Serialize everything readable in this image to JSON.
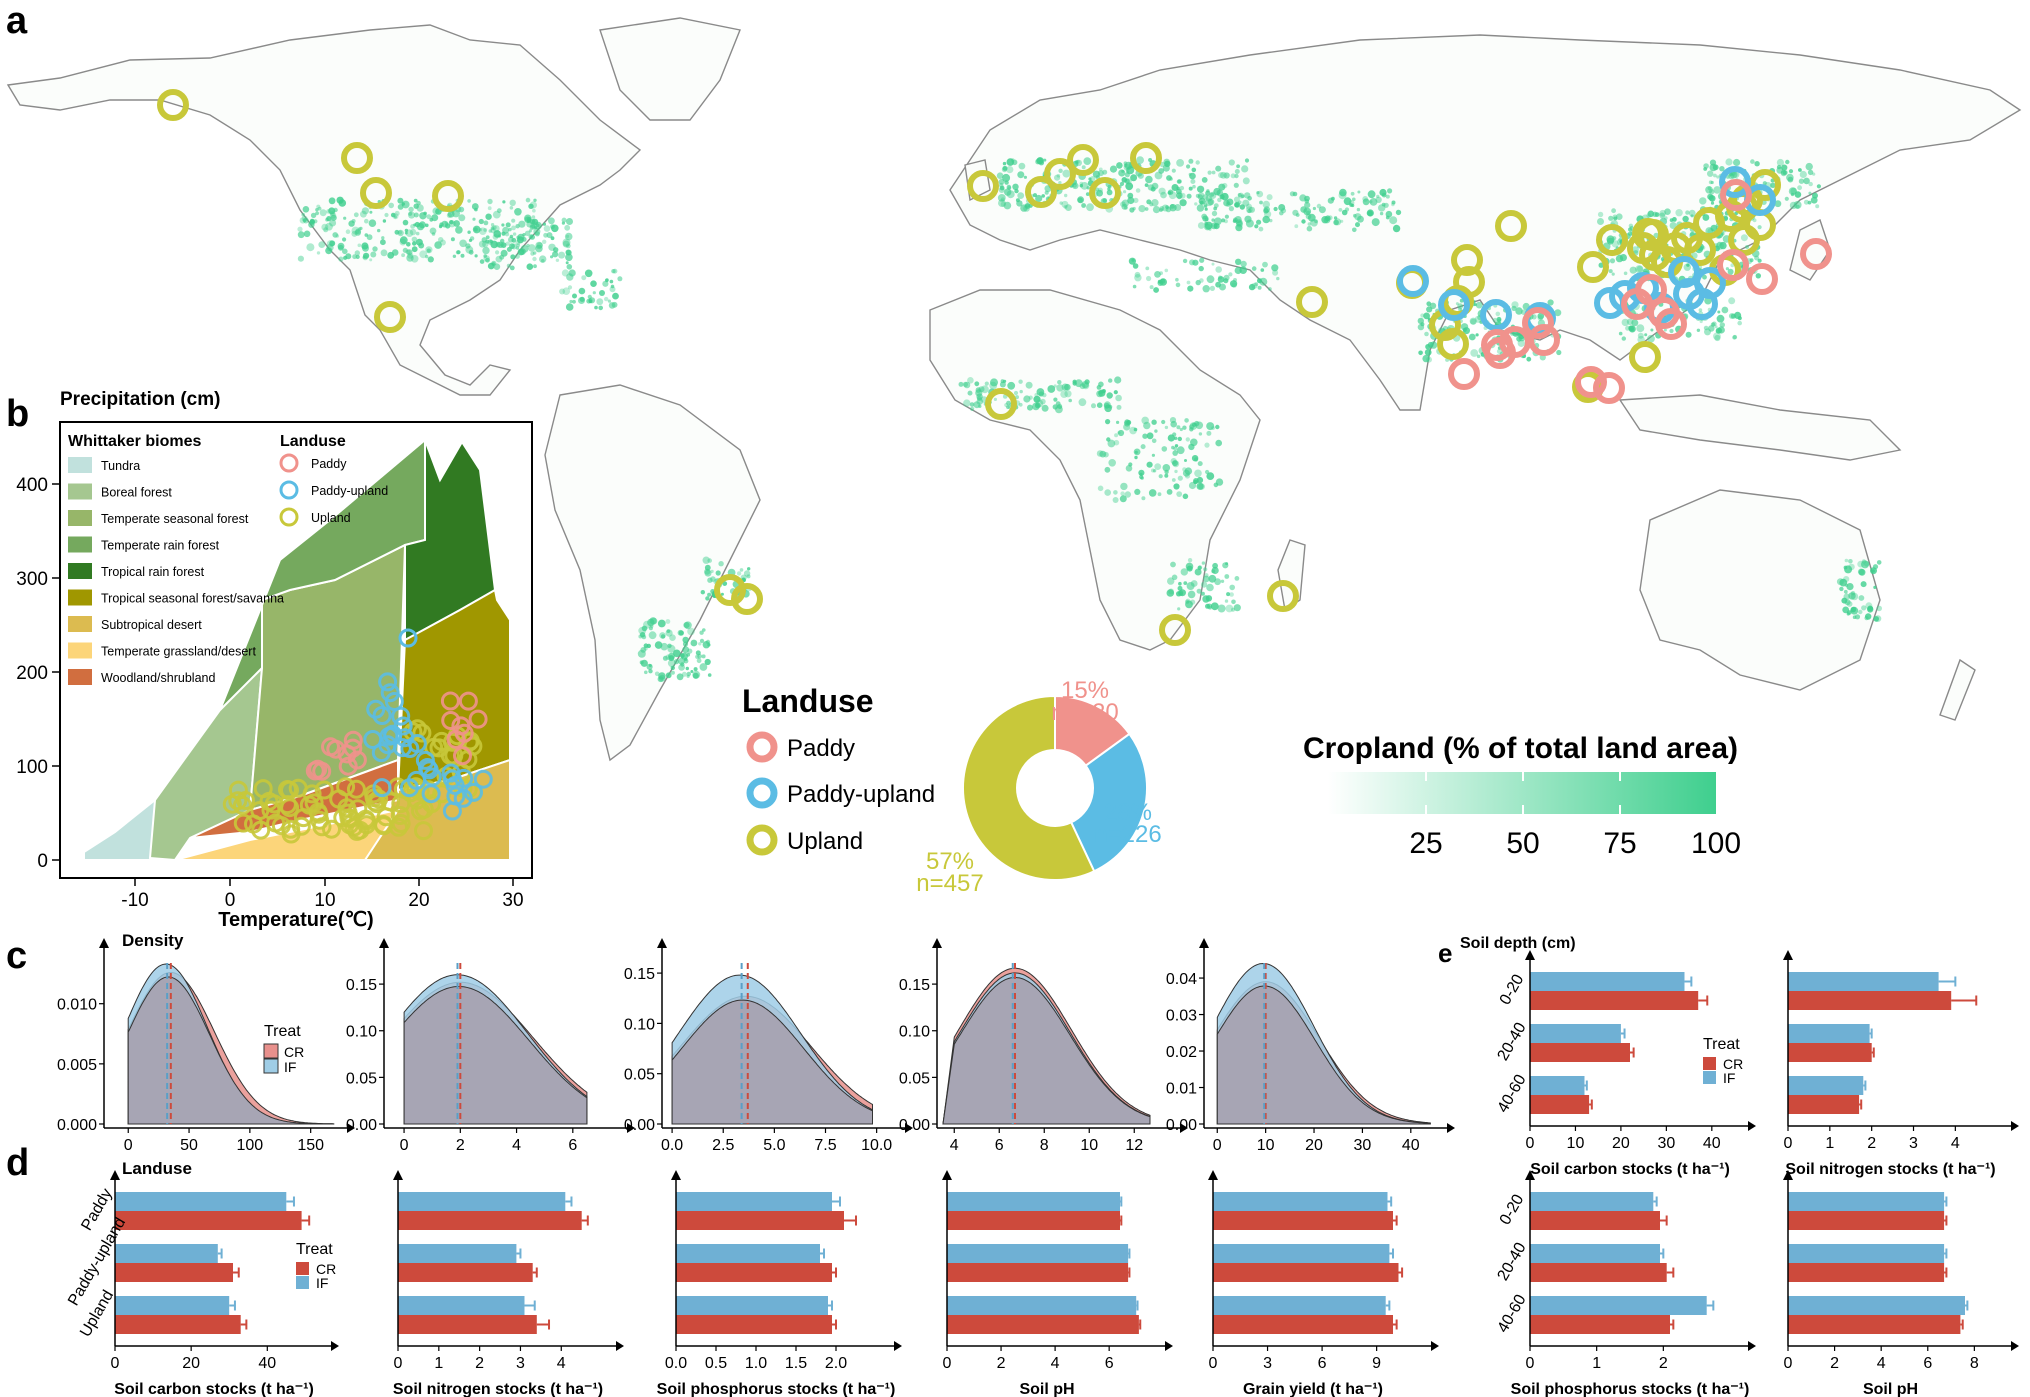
{
  "panels": {
    "a": "a",
    "b": "b",
    "c": "c",
    "d": "d",
    "e": "e"
  },
  "map": {
    "cropland_legend_title": "Cropland (% of total land area)",
    "cropland_ticks": [
      "25",
      "50",
      "75",
      "100"
    ],
    "colors": {
      "cropland": "#3fcf8e",
      "paddy": "#f0928c",
      "paddy_upland": "#5bbce4",
      "upland": "#c8c83a",
      "land_outline": "#7a7a7a"
    },
    "landuse_legend": {
      "title": "Landuse",
      "items": [
        "Paddy",
        "Paddy-upland",
        "Upland"
      ]
    },
    "donut": {
      "labels": [
        {
          "pct": "15%",
          "n": "n=120"
        },
        {
          "pct": "28%",
          "n": "n=226"
        },
        {
          "pct": "57%",
          "n": "n=457"
        }
      ],
      "fractions": [
        0.15,
        0.28,
        0.57
      ]
    }
  },
  "whittaker": {
    "ylabel": "Precipitation (cm)",
    "xlabel": "Temperature(℃)",
    "xticks": [
      "-10",
      "0",
      "10",
      "20",
      "30"
    ],
    "yticks": [
      "0",
      "100",
      "200",
      "300",
      "400"
    ],
    "biomes_title": "Whittaker biomes",
    "biomes": [
      {
        "name": "Tundra",
        "color": "#c1e1dd"
      },
      {
        "name": "Boreal forest",
        "color": "#a5c790"
      },
      {
        "name": "Temperate seasonal forest",
        "color": "#97b669"
      },
      {
        "name": "Temperate rain forest",
        "color": "#75a95e"
      },
      {
        "name": "Tropical rain forest",
        "color": "#317a22"
      },
      {
        "name": "Tropical seasonal forest/savanna",
        "color": "#a09700"
      },
      {
        "name": "Subtropical desert",
        "color": "#dcbb50"
      },
      {
        "name": "Temperate grassland/desert",
        "color": "#fcd57a"
      },
      {
        "name": "Woodland/shrubland",
        "color": "#d16e3f"
      }
    ],
    "landuse_title": "Landuse",
    "landuse": [
      "Paddy",
      "Paddy-upland",
      "Upland"
    ]
  },
  "panel_c": {
    "ylabel": "Density",
    "treat_title": "Treat",
    "treat": [
      "CR",
      "IF"
    ],
    "colors": {
      "CR": "#e8908c",
      "IF": "#9fcde6",
      "overlap": "#a7a5b4"
    },
    "charts": [
      {
        "yticks": [
          "0.000",
          "0.005",
          "0.010"
        ],
        "xticks": [
          "0",
          "50",
          "100",
          "150"
        ],
        "xlim": [
          -15,
          170
        ],
        "ylim": [
          0,
          0.0138
        ],
        "cr": {
          "mean": 35,
          "sd": 36,
          "peak": 0.0126
        },
        "if": {
          "mean": 31,
          "sd": 34,
          "peak": 0.0133
        },
        "cr_mean": 35,
        "if_mean": 32
      },
      {
        "yticks": [
          "0.00",
          "0.05",
          "0.10",
          "0.15"
        ],
        "xticks": [
          "0",
          "2",
          "4",
          "6"
        ],
        "xlim": [
          -0.5,
          7.5
        ],
        "ylim": [
          0,
          0.178
        ],
        "cr": {
          "mean": 2.0,
          "sd": 2.6,
          "peak": 0.152
        },
        "if": {
          "mean": 1.9,
          "sd": 2.5,
          "peak": 0.16
        },
        "cr_mean": 2.0,
        "if_mean": 1.9
      },
      {
        "yticks": [
          "0.00",
          "0.05",
          "0.10",
          "0.15"
        ],
        "xticks": [
          "0.0",
          "2.5",
          "5.0",
          "7.5",
          "10.0"
        ],
        "xlim": [
          -0.2,
          10.8
        ],
        "ylim": [
          0,
          0.165
        ],
        "cr": {
          "mean": 3.6,
          "sd": 3.2,
          "peak": 0.127
        },
        "if": {
          "mean": 3.3,
          "sd": 3.0,
          "peak": 0.148
        },
        "cr_mean": 3.7,
        "if_mean": 3.4
      },
      {
        "yticks": [
          "0.00",
          "0.05",
          "0.10",
          "0.15"
        ],
        "xticks": [
          "4",
          "6",
          "8",
          "10",
          "12"
        ],
        "xlim": [
          3.5,
          13.5
        ],
        "ylim": [
          0,
          0.178
        ],
        "cr": {
          "mean": 6.7,
          "sd": 2.5,
          "peak": 0.167
        },
        "if": {
          "mean": 6.7,
          "sd": 2.45,
          "peak": 0.162
        },
        "cr_mean": 6.7,
        "if_mean": 6.6
      },
      {
        "yticks": [
          "0.00",
          "0.01",
          "0.02",
          "0.03",
          "0.04"
        ],
        "xticks": [
          "0",
          "10",
          "20",
          "30",
          "40"
        ],
        "xlim": [
          -1.5,
          45
        ],
        "ylim": [
          0,
          0.0455
        ],
        "cr": {
          "mean": 10,
          "sd": 11,
          "peak": 0.039
        },
        "if": {
          "mean": 9.5,
          "sd": 10.5,
          "peak": 0.044
        },
        "cr_mean": 10,
        "if_mean": 9.7
      }
    ]
  },
  "panel_d": {
    "ylabel": "Landuse",
    "categories": [
      "Paddy",
      "Paddy-upland",
      "Upland"
    ],
    "treat_title": "Treat",
    "treat": [
      "CR",
      "IF"
    ],
    "colors": {
      "CR": "#cd4a3c",
      "IF": "#6fb0d4"
    },
    "charts": [
      {
        "xlabel": "Soil carbon stocks (t ha⁻¹)",
        "xticks": [
          "0",
          "20",
          "40"
        ],
        "xmax": 52,
        "IF": [
          45,
          27,
          30
        ],
        "CR": [
          49,
          31,
          33
        ],
        "IF_err": [
          2,
          1,
          1.5
        ],
        "CR_err": [
          2,
          1.5,
          1.5
        ]
      },
      {
        "xlabel": "Soil nitrogen stocks (t ha⁻¹)",
        "xticks": [
          "0",
          "1",
          "2",
          "3",
          "4"
        ],
        "xmax": 4.9,
        "IF": [
          4.1,
          2.9,
          3.1
        ],
        "CR": [
          4.5,
          3.3,
          3.4
        ],
        "IF_err": [
          0.15,
          0.1,
          0.25
        ],
        "CR_err": [
          0.15,
          0.1,
          0.3
        ]
      },
      {
        "xlabel": "Soil phosphorus stocks (t ha⁻¹)",
        "xticks": [
          "0.0",
          "0.5",
          "1.0",
          "1.5",
          "2.0"
        ],
        "xmax": 2.5,
        "IF": [
          1.95,
          1.8,
          1.9
        ],
        "CR": [
          2.1,
          1.95,
          1.95
        ],
        "IF_err": [
          0.1,
          0.05,
          0.05
        ],
        "CR_err": [
          0.15,
          0.05,
          0.05
        ]
      },
      {
        "xlabel": "Soil pH",
        "xticks": [
          "0",
          "2",
          "4",
          "6"
        ],
        "xmax": 7.4,
        "IF": [
          6.4,
          6.7,
          7.0
        ],
        "CR": [
          6.4,
          6.7,
          7.1
        ],
        "IF_err": [
          0.05,
          0.05,
          0.05
        ],
        "CR_err": [
          0.05,
          0.05,
          0.05
        ]
      },
      {
        "xlabel": "Grain yield (t ha⁻¹)",
        "xticks": [
          "0",
          "3",
          "6",
          "9"
        ],
        "xmax": 11,
        "IF": [
          9.6,
          9.7,
          9.5
        ],
        "CR": [
          9.9,
          10.2,
          9.9
        ],
        "IF_err": [
          0.2,
          0.2,
          0.2
        ],
        "CR_err": [
          0.2,
          0.2,
          0.2
        ]
      }
    ]
  },
  "panel_e": {
    "ylabel": "Soil depth (cm)",
    "categories": [
      "0-20",
      "20-40",
      "40-60"
    ],
    "treat_title": "Treat",
    "treat": [
      "CR",
      "IF"
    ],
    "colors": {
      "CR": "#cd4a3c",
      "IF": "#6fb0d4"
    },
    "charts": [
      {
        "xlabel": "Soil carbon stocks (t ha⁻¹)",
        "xticks": [
          "0",
          "10",
          "20",
          "30",
          "40"
        ],
        "xmax": 44,
        "IF": [
          34,
          20,
          12
        ],
        "CR": [
          37,
          22,
          13
        ],
        "IF_err": [
          1.5,
          0.8,
          0.5
        ],
        "CR_err": [
          2,
          0.8,
          0.6
        ]
      },
      {
        "xlabel": "Soil nitrogen stocks (t ha⁻¹)",
        "xticks": [
          "0",
          "1",
          "2",
          "3",
          "4"
        ],
        "xmax": 4.9,
        "IF": [
          3.6,
          1.95,
          1.8
        ],
        "CR": [
          3.9,
          2.0,
          1.7
        ],
        "IF_err": [
          0.4,
          0.05,
          0.05
        ],
        "CR_err": [
          0.6,
          0.05,
          0.05
        ]
      },
      {
        "xlabel": "Soil phosphorus stocks (t ha⁻¹)",
        "xticks": [
          "0",
          "1",
          "2"
        ],
        "xmax": 3.0,
        "IF": [
          1.85,
          1.95,
          2.65
        ],
        "CR": [
          1.95,
          2.05,
          2.1
        ],
        "IF_err": [
          0.05,
          0.05,
          0.1
        ],
        "CR_err": [
          0.1,
          0.1,
          0.05
        ]
      },
      {
        "xlabel": "Soil pH",
        "xticks": [
          "0",
          "2",
          "4",
          "6",
          "8"
        ],
        "xmax": 8.8,
        "IF": [
          6.7,
          6.7,
          7.6
        ],
        "CR": [
          6.7,
          6.7,
          7.4
        ],
        "IF_err": [
          0.1,
          0.1,
          0.1
        ],
        "CR_err": [
          0.1,
          0.1,
          0.1
        ]
      }
    ]
  }
}
